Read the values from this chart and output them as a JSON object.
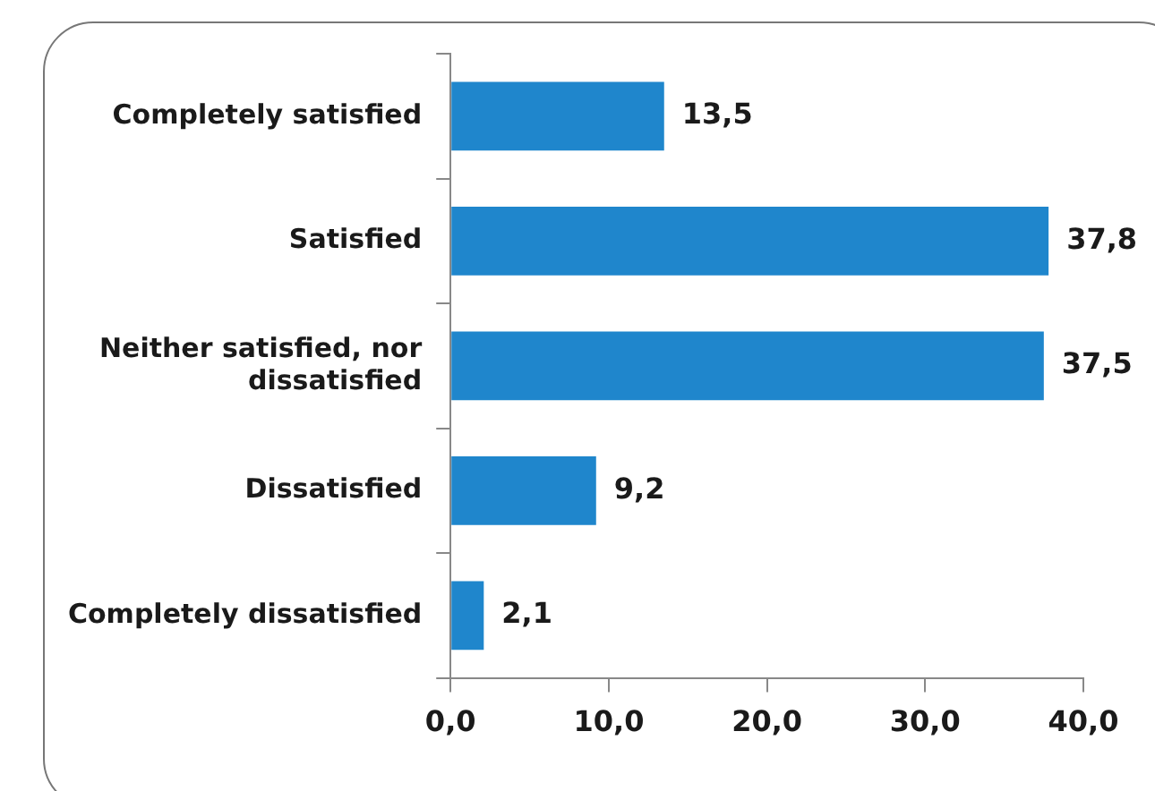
{
  "chart_data": {
    "type": "bar",
    "orientation": "horizontal",
    "categories": [
      "Completely satisfied",
      "Satisfied",
      "Neither satisfied, nor dissatisfied",
      "Dissatisfied",
      "Completely dissatisfied"
    ],
    "values": [
      13.5,
      37.8,
      37.5,
      9.2,
      2.1
    ],
    "color": "#1f86cc",
    "value_labels": [
      "13,5",
      "37,8",
      "37,5",
      "9,2",
      "2,1"
    ],
    "xlim": [
      0,
      40
    ],
    "xticks": [
      {
        "value": 0,
        "label": "0,0"
      },
      {
        "value": 10,
        "label": "10,0"
      },
      {
        "value": 20,
        "label": "20,0"
      },
      {
        "value": 30,
        "label": "30,0"
      },
      {
        "value": 40,
        "label": "40,0"
      }
    ],
    "grid": false,
    "legend": false
  }
}
